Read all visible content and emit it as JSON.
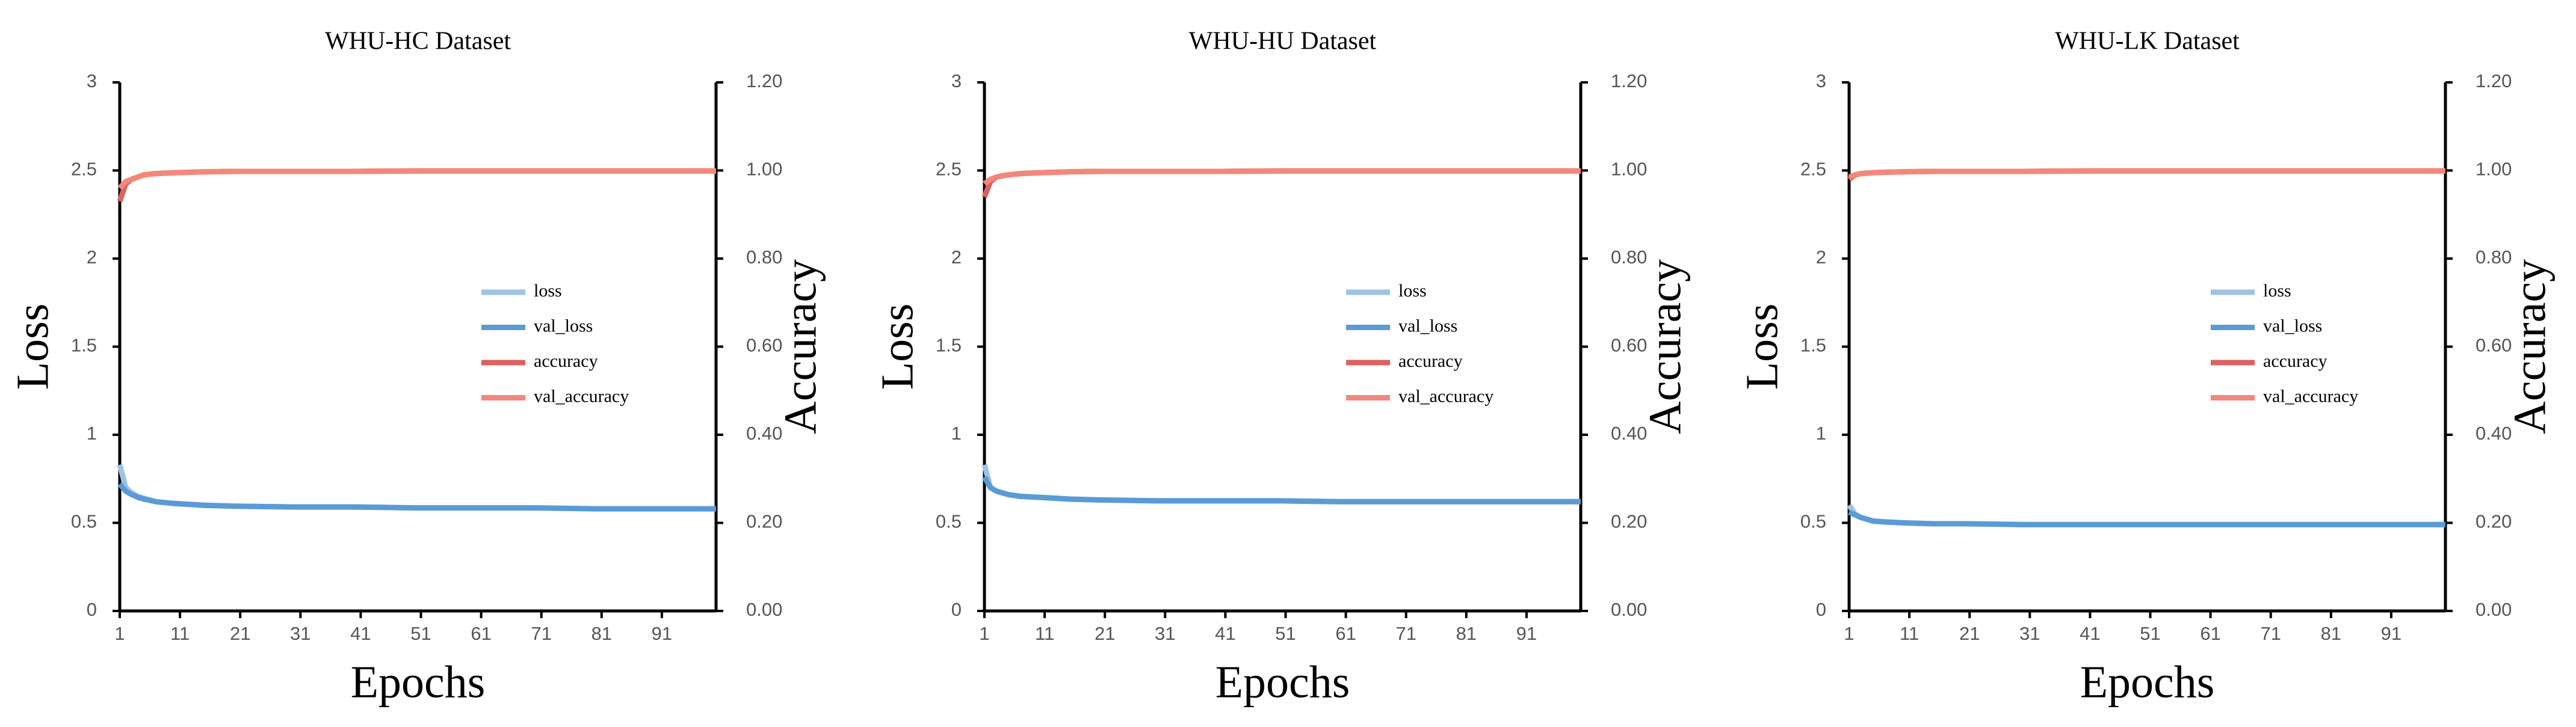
{
  "chart_data": [
    {
      "type": "line",
      "title": "WHU-HC Dataset",
      "x_label": "Epochs",
      "y_label": "Loss",
      "y2_label": "Accuracy",
      "x": [
        1,
        2,
        3,
        4,
        5,
        7,
        10,
        15,
        20,
        30,
        40,
        50,
        60,
        70,
        80,
        90,
        100
      ],
      "xlim": [
        1,
        100
      ],
      "xticks": [
        1,
        11,
        21,
        31,
        41,
        51,
        61,
        71,
        81,
        91
      ],
      "ylim": [
        0,
        3
      ],
      "yticks": [
        0,
        0.5,
        1,
        1.5,
        2,
        2.5,
        3
      ],
      "y2lim": [
        0,
        1.2
      ],
      "y2ticks": [
        {
          "value": 0,
          "label": "0.00"
        },
        {
          "value": 0.2,
          "label": "0.20"
        },
        {
          "value": 0.4,
          "label": "0.40"
        },
        {
          "value": 0.6,
          "label": "0.60"
        },
        {
          "value": 0.8,
          "label": "0.80"
        },
        {
          "value": 1,
          "label": "1.00"
        },
        {
          "value": 1.2,
          "label": "1.20"
        }
      ],
      "grid": false,
      "series": [
        {
          "name": "loss",
          "color": "#9dc3e6",
          "values": [
            0.83,
            0.7,
            0.67,
            0.65,
            0.64,
            0.62,
            0.61,
            0.6,
            0.595,
            0.59,
            0.59,
            0.585,
            0.585,
            0.585,
            0.58,
            0.58,
            0.58
          ]
        },
        {
          "name": "val_loss",
          "color": "#5b9bd5",
          "values": [
            0.72,
            0.68,
            0.66,
            0.645,
            0.635,
            0.62,
            0.61,
            0.6,
            0.595,
            0.59,
            0.59,
            0.585,
            0.585,
            0.585,
            0.58,
            0.58,
            0.58
          ]
        },
        {
          "name": "accuracy",
          "color": "#d9625f",
          "axis": "y2",
          "values": [
            0.93,
            0.97,
            0.98,
            0.985,
            0.99,
            0.993,
            0.995,
            0.997,
            0.998,
            0.998,
            0.998,
            0.999,
            0.999,
            0.999,
            0.999,
            0.999,
            0.999
          ]
        },
        {
          "name": "val_accuracy",
          "color": "#f4877b",
          "axis": "y2",
          "values": [
            0.96,
            0.975,
            0.98,
            0.985,
            0.99,
            0.993,
            0.995,
            0.997,
            0.998,
            0.998,
            0.998,
            0.999,
            0.999,
            0.999,
            0.999,
            0.999,
            0.999
          ]
        }
      ]
    },
    {
      "type": "line",
      "title": "WHU-HU Dataset",
      "x_label": "Epochs",
      "y_label": "Loss",
      "y2_label": "Accuracy",
      "x": [
        1,
        2,
        3,
        4,
        5,
        7,
        10,
        15,
        20,
        30,
        40,
        50,
        60,
        70,
        80,
        90,
        100
      ],
      "xlim": [
        1,
        100
      ],
      "xticks": [
        1,
        11,
        21,
        31,
        41,
        51,
        61,
        71,
        81,
        91
      ],
      "ylim": [
        0,
        3
      ],
      "yticks": [
        0,
        0.5,
        1,
        1.5,
        2,
        2.5,
        3
      ],
      "y2lim": [
        0,
        1.2
      ],
      "y2ticks": [
        {
          "value": 0,
          "label": "0.00"
        },
        {
          "value": 0.2,
          "label": "0.20"
        },
        {
          "value": 0.4,
          "label": "0.40"
        },
        {
          "value": 0.6,
          "label": "0.60"
        },
        {
          "value": 0.8,
          "label": "0.80"
        },
        {
          "value": 1,
          "label": "1.00"
        },
        {
          "value": 1.2,
          "label": "1.20"
        }
      ],
      "grid": false,
      "series": [
        {
          "name": "loss",
          "color": "#9dc3e6",
          "values": [
            0.83,
            0.7,
            0.68,
            0.67,
            0.66,
            0.65,
            0.645,
            0.635,
            0.63,
            0.625,
            0.625,
            0.625,
            0.62,
            0.62,
            0.62,
            0.62,
            0.62
          ]
        },
        {
          "name": "val_loss",
          "color": "#5b9bd5",
          "values": [
            0.76,
            0.7,
            0.68,
            0.67,
            0.66,
            0.65,
            0.645,
            0.635,
            0.63,
            0.625,
            0.625,
            0.625,
            0.62,
            0.62,
            0.62,
            0.62,
            0.62
          ]
        },
        {
          "name": "accuracy",
          "color": "#d9625f",
          "axis": "y2",
          "values": [
            0.94,
            0.975,
            0.985,
            0.988,
            0.99,
            0.993,
            0.995,
            0.997,
            0.998,
            0.998,
            0.998,
            0.999,
            0.999,
            0.999,
            0.999,
            0.999,
            0.999
          ]
        },
        {
          "name": "val_accuracy",
          "color": "#f4877b",
          "axis": "y2",
          "values": [
            0.97,
            0.98,
            0.985,
            0.988,
            0.99,
            0.993,
            0.995,
            0.997,
            0.998,
            0.998,
            0.998,
            0.999,
            0.999,
            0.999,
            0.999,
            0.999,
            0.999
          ]
        }
      ]
    },
    {
      "type": "line",
      "title": "WHU-LK Dataset",
      "x_label": "Epochs",
      "y_label": "Loss",
      "y2_label": "Accuracy",
      "x": [
        1,
        2,
        3,
        4,
        5,
        7,
        10,
        15,
        20,
        30,
        40,
        50,
        60,
        70,
        80,
        90,
        100
      ],
      "xlim": [
        1,
        100
      ],
      "xticks": [
        1,
        11,
        21,
        31,
        41,
        51,
        61,
        71,
        81,
        91
      ],
      "ylim": [
        0,
        3
      ],
      "yticks": [
        0,
        0.5,
        1,
        1.5,
        2,
        2.5,
        3
      ],
      "y2lim": [
        0,
        1.2
      ],
      "y2ticks": [
        {
          "value": 0,
          "label": "0.00"
        },
        {
          "value": 0.2,
          "label": "0.20"
        },
        {
          "value": 0.4,
          "label": "0.40"
        },
        {
          "value": 0.6,
          "label": "0.60"
        },
        {
          "value": 0.8,
          "label": "0.80"
        },
        {
          "value": 1,
          "label": "1.00"
        },
        {
          "value": 1.2,
          "label": "1.20"
        }
      ],
      "grid": false,
      "series": [
        {
          "name": "loss",
          "color": "#9dc3e6",
          "values": [
            0.6,
            0.55,
            0.53,
            0.52,
            0.51,
            0.505,
            0.5,
            0.495,
            0.495,
            0.49,
            0.49,
            0.49,
            0.49,
            0.49,
            0.49,
            0.49,
            0.49
          ]
        },
        {
          "name": "val_loss",
          "color": "#5b9bd5",
          "values": [
            0.56,
            0.545,
            0.53,
            0.52,
            0.51,
            0.505,
            0.5,
            0.495,
            0.495,
            0.49,
            0.49,
            0.49,
            0.49,
            0.49,
            0.49,
            0.49,
            0.49
          ]
        },
        {
          "name": "accuracy",
          "color": "#d9625f",
          "axis": "y2",
          "values": [
            0.98,
            0.99,
            0.993,
            0.994,
            0.995,
            0.996,
            0.997,
            0.998,
            0.998,
            0.998,
            0.999,
            0.999,
            0.999,
            0.999,
            0.999,
            0.999,
            0.999
          ]
        },
        {
          "name": "val_accuracy",
          "color": "#f4877b",
          "axis": "y2",
          "values": [
            0.985,
            0.99,
            0.993,
            0.994,
            0.995,
            0.996,
            0.997,
            0.998,
            0.998,
            0.998,
            0.999,
            0.999,
            0.999,
            0.999,
            0.999,
            0.999,
            0.999
          ]
        }
      ]
    }
  ]
}
